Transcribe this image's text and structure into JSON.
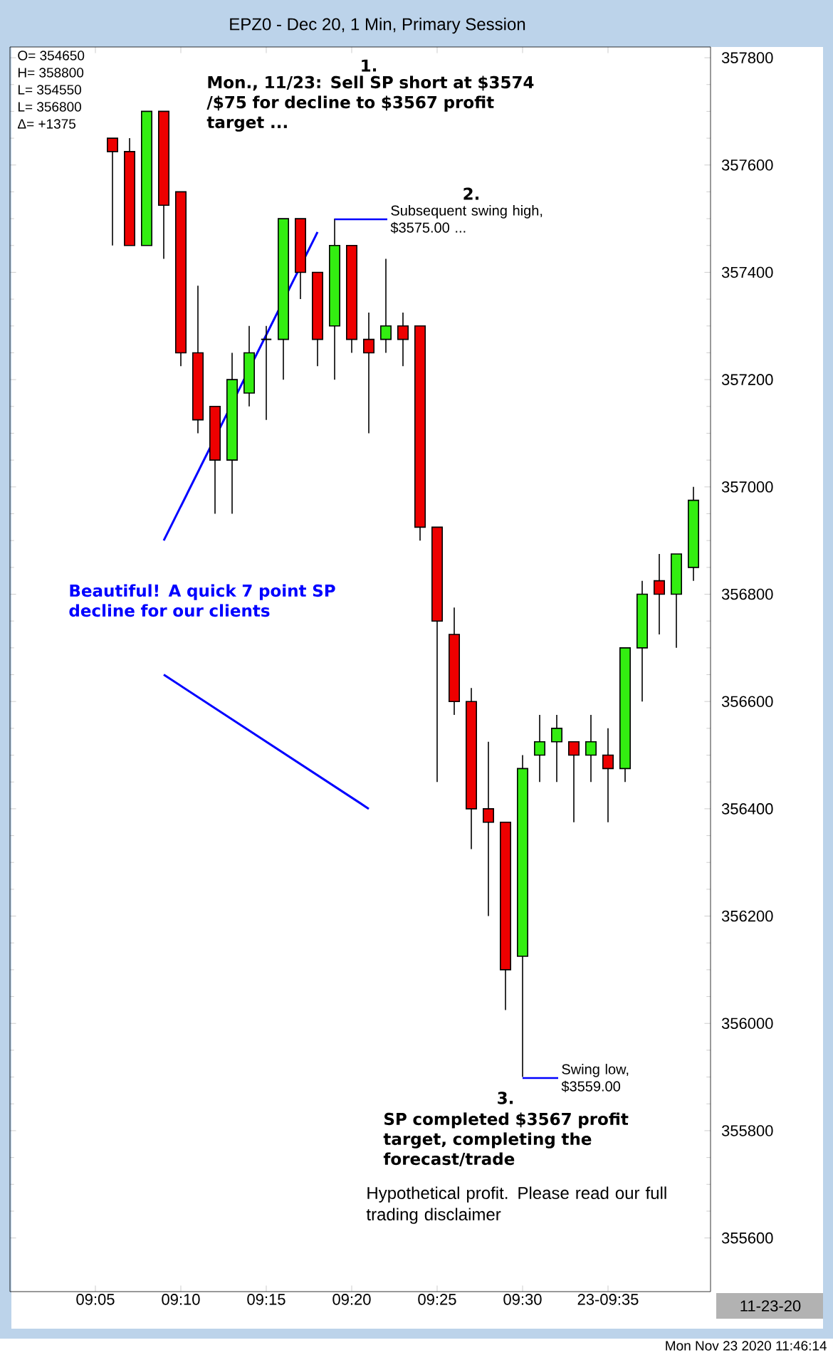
{
  "chart_data": {
    "type": "candlestick",
    "title": "EPZ0 - Dec 20, 1 Min, Primary Session",
    "x": [
      "2020-11-23T09:06",
      "2020-11-23T09:07",
      "2020-11-23T09:08",
      "2020-11-23T09:09",
      "2020-11-23T09:10",
      "2020-11-23T09:11",
      "2020-11-23T09:12",
      "2020-11-23T09:13",
      "2020-11-23T09:14",
      "2020-11-23T09:15",
      "2020-11-23T09:16",
      "2020-11-23T09:17",
      "2020-11-23T09:18",
      "2020-11-23T09:19",
      "2020-11-23T09:20",
      "2020-11-23T09:21",
      "2020-11-23T09:22",
      "2020-11-23T09:23",
      "2020-11-23T09:24",
      "2020-11-23T09:25",
      "2020-11-23T09:26",
      "2020-11-23T09:27",
      "2020-11-23T09:28",
      "2020-11-23T09:29",
      "2020-11-23T09:30",
      "2020-11-23T09:31",
      "2020-11-23T09:32",
      "2020-11-23T09:33",
      "2020-11-23T09:34",
      "2020-11-23T09:35",
      "2020-11-23T09:36",
      "2020-11-23T09:37",
      "2020-11-23T09:38",
      "2020-11-23T09:39",
      "2020-11-23T09:40"
    ],
    "ohlc": [
      [
        357650,
        357650,
        357450,
        357625
      ],
      [
        357625,
        357650,
        357450,
        357450
      ],
      [
        357450,
        357700,
        357450,
        357700
      ],
      [
        357700,
        357700,
        357425,
        357525
      ],
      [
        357550,
        357550,
        357225,
        357250
      ],
      [
        357250,
        357375,
        357100,
        357125
      ],
      [
        357150,
        357150,
        356950,
        357050
      ],
      [
        357050,
        357250,
        356950,
        357200
      ],
      [
        357175,
        357300,
        357150,
        357250
      ],
      [
        357275,
        357300,
        357125,
        357275
      ],
      [
        357275,
        357500,
        357200,
        357500
      ],
      [
        357500,
        357500,
        357350,
        357400
      ],
      [
        357400,
        357400,
        357225,
        357275
      ],
      [
        357300,
        357500,
        357200,
        357450
      ],
      [
        357450,
        357450,
        357250,
        357275
      ],
      [
        357275,
        357325,
        357100,
        357250
      ],
      [
        357275,
        357425,
        357250,
        357300
      ],
      [
        357300,
        357325,
        357225,
        357275
      ],
      [
        357300,
        357300,
        356900,
        356925
      ],
      [
        356925,
        356925,
        356450,
        356750
      ],
      [
        356725,
        356775,
        356575,
        356600
      ],
      [
        356600,
        356625,
        356325,
        356400
      ],
      [
        356400,
        356525,
        356200,
        356375
      ],
      [
        356375,
        356375,
        356025,
        356100
      ],
      [
        356125,
        356500,
        355900,
        356475
      ],
      [
        356500,
        356575,
        356450,
        356525
      ],
      [
        356525,
        356575,
        356450,
        356550
      ],
      [
        356525,
        356525,
        356375,
        356500
      ],
      [
        356500,
        356575,
        356450,
        356525
      ],
      [
        356500,
        356550,
        356375,
        356475
      ],
      [
        356475,
        356700,
        356450,
        356700
      ],
      [
        356700,
        356825,
        356600,
        356800
      ],
      [
        356825,
        356875,
        356725,
        356800
      ],
      [
        356800,
        356875,
        356700,
        356875
      ],
      [
        356850,
        357000,
        356825,
        356975
      ]
    ],
    "colors": [
      "#ee0000",
      "#ee0000",
      "#33ee11",
      "#ee0000",
      "#ee0000",
      "#ee0000",
      "#ee0000",
      "#33ee11",
      "#33ee11",
      "#000000",
      "#33ee11",
      "#ee0000",
      "#ee0000",
      "#33ee11",
      "#ee0000",
      "#ee0000",
      "#33ee11",
      "#ee0000",
      "#ee0000",
      "#ee0000",
      "#ee0000",
      "#ee0000",
      "#ee0000",
      "#ee0000",
      "#33ee11",
      "#33ee11",
      "#33ee11",
      "#ee0000",
      "#33ee11",
      "#ee0000",
      "#33ee11",
      "#33ee11",
      "#ee0000",
      "#33ee11",
      "#33ee11"
    ],
    "series": [
      {
        "type": "line",
        "color": "#0000ff",
        "x": [
          "2020-11-23T09:09",
          "2020-11-23T09:18"
        ],
        "values": [
          356900,
          357475
        ]
      },
      {
        "type": "line",
        "color": "#0000ff",
        "x": [
          "2020-11-23T09:09",
          "2020-11-23T09:21"
        ],
        "values": [
          356650,
          356400
        ]
      }
    ],
    "xlim": [
      "2020-11-23T09:00",
      "2020-11-23T09:41"
    ],
    "xticks": [
      {
        "value": "2020-11-23T09:05",
        "label": "09:05"
      },
      {
        "value": "2020-11-23T09:10",
        "label": "09:10"
      },
      {
        "value": "2020-11-23T09:15",
        "label": "09:15"
      },
      {
        "value": "2020-11-23T09:20",
        "label": "09:20"
      },
      {
        "value": "2020-11-23T09:25",
        "label": "09:25"
      },
      {
        "value": "2020-11-23T09:30",
        "label": "09:30"
      },
      {
        "value": "2020-11-23T09:35",
        "label": "23-09:35"
      }
    ],
    "ylim": [
      355500,
      357820
    ],
    "yticks": [
      355600,
      355800,
      356000,
      356200,
      356400,
      356600,
      356800,
      357000,
      357200,
      357400,
      357600,
      357800
    ],
    "annotations": [
      "1.",
      "Mon., 11/23: Sell SP short at $3574 /$75 for decline to $3567 profit target ...",
      "2.",
      "Subsequent swing high, $3575.00 ...",
      "Beautiful! A quick 7 point SP decline for our clients",
      "3.",
      "Swing low, $3559.00",
      "SP completed $3567 profit target, completing the forecast/trade",
      "Hypothetical profit. Please read our full trading disclaimer",
      "O= 354650",
      "H= 358800",
      "L= 354550",
      "L= 356800",
      "Δ= +1375",
      "11-23-20",
      "Mon Nov 23 2020 11:46:14"
    ]
  }
}
